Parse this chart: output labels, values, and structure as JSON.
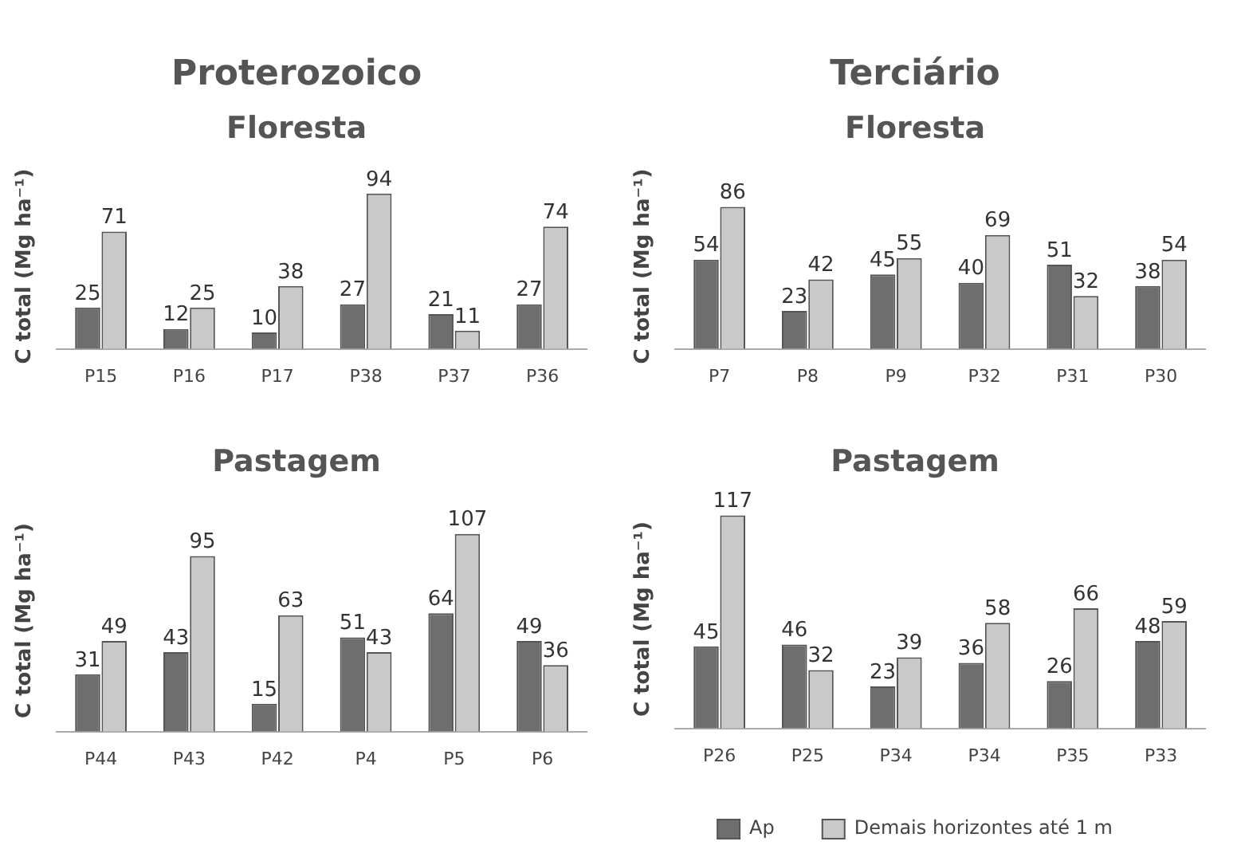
{
  "chart_data": [
    {
      "type": "bar",
      "title": "Proterozoico",
      "subtitle": "Floresta",
      "ylabel": "C total (Mg ha⁻¹)",
      "categories": [
        "P15",
        "P16",
        "P17",
        "P38",
        "P37",
        "P36"
      ],
      "series": [
        {
          "color": "#6e6e6e",
          "values": [
            25,
            12,
            10,
            27,
            21,
            27
          ]
        },
        {
          "color": "#c9c9c9",
          "values": [
            71,
            25,
            38,
            94,
            11,
            74
          ]
        }
      ],
      "data_labels": true,
      "grid": false,
      "legend": false,
      "tick_labels": "x"
    },
    {
      "type": "bar",
      "title": "Terciário",
      "subtitle": "Floresta",
      "ylabel": "C total (Mg ha⁻¹)",
      "categories": [
        "P7",
        "P8",
        "P9",
        "P32",
        "P31",
        "P30"
      ],
      "series": [
        {
          "color": "#6e6e6e",
          "values": [
            54,
            23,
            45,
            40,
            51,
            38
          ]
        },
        {
          "color": "#c9c9c9",
          "values": [
            86,
            42,
            55,
            69,
            32,
            54
          ]
        }
      ],
      "data_labels": true,
      "grid": false,
      "legend": false,
      "tick_labels": "x"
    },
    {
      "type": "bar",
      "title": "Pastagem",
      "ylabel": "C total (Mg ha⁻¹)",
      "categories": [
        "P44",
        "P43",
        "P42",
        "P4",
        "P5",
        "P6"
      ],
      "series": [
        {
          "color": "#6e6e6e",
          "values": [
            31,
            43,
            15,
            51,
            64,
            49
          ]
        },
        {
          "color": "#c9c9c9",
          "values": [
            49,
            95,
            63,
            43,
            107,
            36
          ]
        }
      ],
      "data_labels": true,
      "grid": false,
      "legend": false,
      "tick_labels": "x"
    },
    {
      "type": "bar",
      "title": "Pastagem",
      "ylabel": "C total (Mg ha⁻¹)",
      "categories": [
        "P26",
        "P25",
        "P34",
        "P34",
        "P35",
        "P33"
      ],
      "series": [
        {
          "name": "Ap",
          "color": "#6e6e6e",
          "values": [
            45,
            46,
            23,
            36,
            26,
            48
          ]
        },
        {
          "name": "Demais horizontes até 1 m",
          "color": "#c9c9c9",
          "values": [
            117,
            32,
            39,
            58,
            66,
            59
          ]
        }
      ],
      "data_labels": true,
      "grid": false,
      "legend": "bottom",
      "tick_labels": "x"
    }
  ]
}
